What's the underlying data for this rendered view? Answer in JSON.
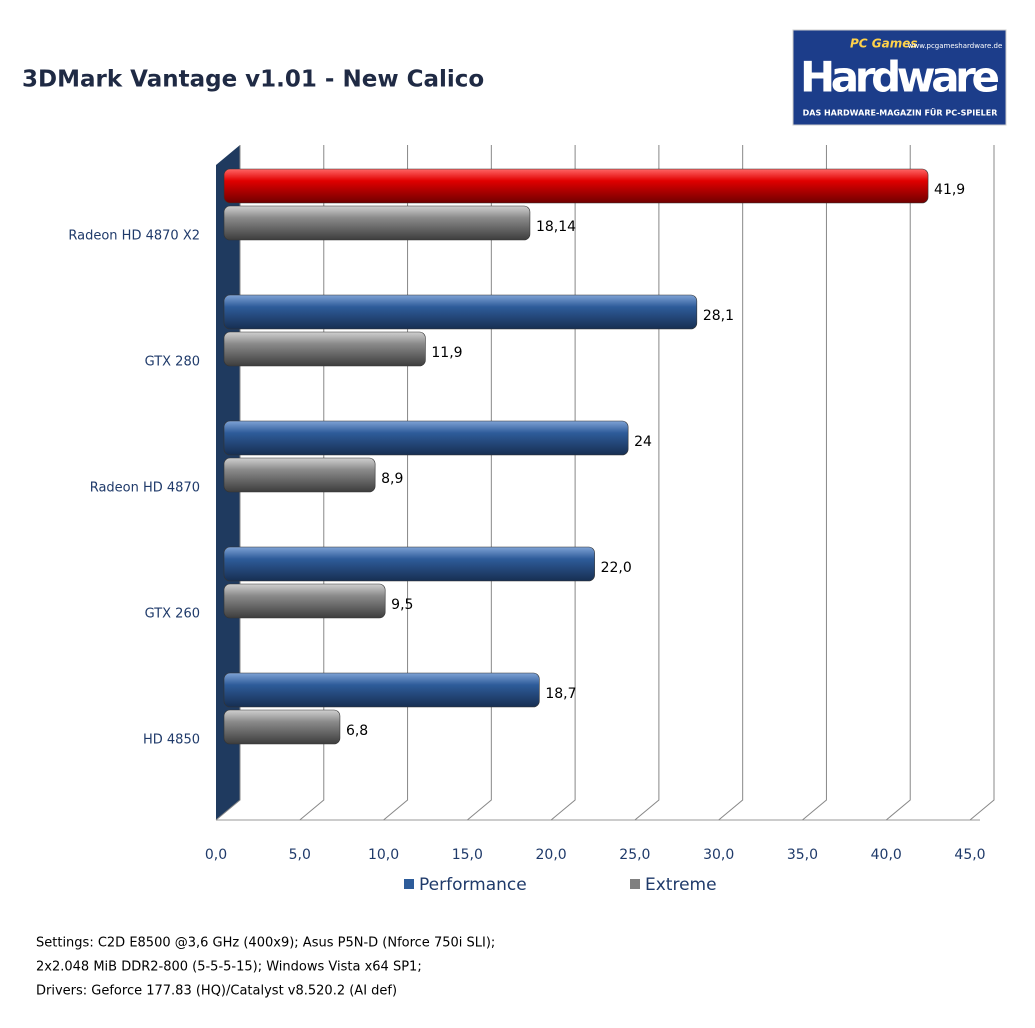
{
  "chart_data": {
    "type": "bar",
    "orientation": "horizontal",
    "title": "3DMark Vantage v1.01 -  New Calico",
    "categories": [
      "Radeon HD 4870 X2",
      "GTX 280",
      "Radeon HD 4870",
      "GTX 260",
      "HD 4850"
    ],
    "series": [
      {
        "name": "Performance",
        "color": "#2e5c9a",
        "colors": [
          "#c00000",
          "#2e5c9a",
          "#2e5c9a",
          "#2e5c9a",
          "#2e5c9a"
        ],
        "values": [
          41.9,
          28.1,
          24,
          22.0,
          18.7
        ],
        "value_labels": [
          "41,9",
          "28,1",
          "24",
          "22,0",
          "18,7"
        ]
      },
      {
        "name": "Extreme",
        "color": "#808080",
        "values": [
          18.14,
          11.9,
          8.9,
          9.5,
          6.8
        ],
        "value_labels": [
          "18,14",
          "11,9",
          "8,9",
          "9,5",
          "6,8"
        ]
      }
    ],
    "xlim": [
      0,
      45
    ],
    "xticks": [
      {
        "value": 0,
        "label": "0,0"
      },
      {
        "value": 5,
        "label": "5,0"
      },
      {
        "value": 10,
        "label": "10,0"
      },
      {
        "value": 15,
        "label": "15,0"
      },
      {
        "value": 20,
        "label": "20,0"
      },
      {
        "value": 25,
        "label": "25,0"
      },
      {
        "value": 30,
        "label": "30,0"
      },
      {
        "value": 35,
        "label": "35,0"
      },
      {
        "value": 40,
        "label": "40,0"
      },
      {
        "value": 45,
        "label": "45,0"
      }
    ],
    "grid": true,
    "legend": "bottom",
    "notes": [
      "Settings: C2D E8500 @3,6 GHz (400x9); Asus P5N-D (Nforce 750i SLI);",
      "2x2.048 MiB DDR2-800 (5-5-5-15);  Windows Vista x64 SP1;",
      "Drivers: Geforce 177.83 (HQ)/Catalyst v8.520.2 (AI def)"
    ]
  },
  "logo": {
    "brand": "PC Games",
    "name": "Hardware",
    "url": "www.pcgameshardware.de",
    "tagline": "DAS HARDWARE-MAGAZIN FÜR PC-SPIELER"
  }
}
